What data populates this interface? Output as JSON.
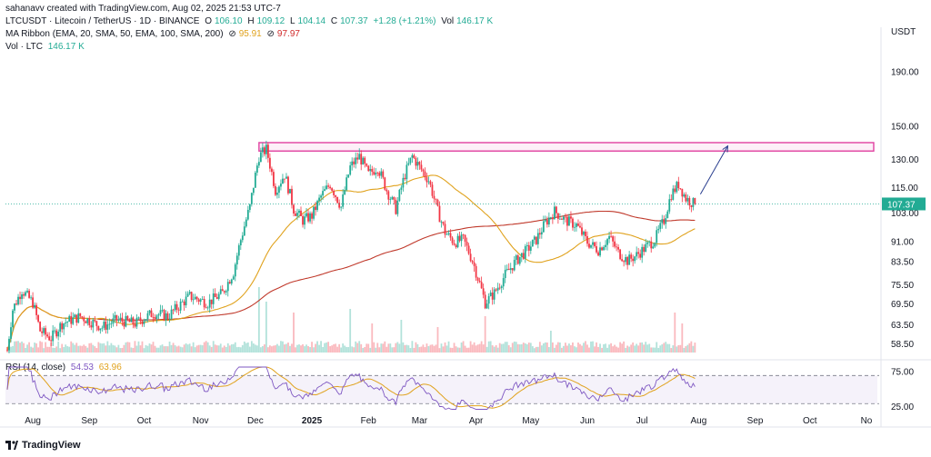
{
  "meta": {
    "credit": "sahanavv created with TradingView.com, Aug 02, 2025 21:53 UTC-7"
  },
  "legend": {
    "symbol_line": "LTCUSDT · Litecoin / TetherUS · 1D · BINANCE",
    "o_label": "O",
    "o_value": "106.10",
    "h_label": "H",
    "h_value": "109.12",
    "l_label": "L",
    "l_value": "104.14",
    "c_label": "C",
    "c_value": "107.37",
    "change": "+1.28 (+1.21%)",
    "vol_label": "Vol",
    "vol_value": "146.17 K",
    "ma_title": "MA Ribbon (EMA, 20, SMA, 50, EMA, 100, SMA, 200)",
    "ma_sep1": "⊘",
    "ma_val1": "95.91",
    "ma_sep2": "⊘",
    "ma_val2": "97.97",
    "vol_line_label": "Vol · LTC",
    "vol_line_value": "146.17 K",
    "rsi_title": "RSI (14, close)",
    "rsi_val1": "54.53",
    "rsi_val2": "63.96"
  },
  "footer": {
    "brand": "TradingView"
  },
  "colors": {
    "up": "#22ab94",
    "down": "#f23645",
    "ma_fast": "#e0a21d",
    "ma_slow": "#c0392b",
    "rsi": "#7e57c2",
    "rsi_ma": "#e0a21d",
    "resistance": "#e040a0",
    "arrow": "#2a3f8f",
    "price_label": "#22ab94"
  },
  "chart_data": {
    "type": "candlestick",
    "price_axis_unit": "USDT",
    "price_ticks": [
      "190.00",
      "150.00",
      "130.00",
      "115.00",
      "103.00",
      "91.00",
      "83.50",
      "75.50",
      "69.50",
      "63.50",
      "58.50"
    ],
    "price_tick_values": [
      190,
      150,
      130,
      115,
      103,
      91,
      83.5,
      75.5,
      69.5,
      63.5,
      58.5
    ],
    "current_price": "107.37",
    "current_price_value": 107.37,
    "x_labels": [
      "Aug",
      "Sep",
      "Oct",
      "Nov",
      "Dec",
      "2025",
      "Feb",
      "Mar",
      "Apr",
      "May",
      "Jun",
      "Jul",
      "Aug",
      "Sep",
      "Oct",
      "No"
    ],
    "x_label_day": [
      14,
      45,
      75,
      106,
      136,
      167,
      198,
      226,
      257,
      287,
      318,
      348,
      379,
      410,
      440,
      471
    ],
    "last_day": 377,
    "resistance_zone": [
      135,
      140
    ],
    "rsi_ticks": [
      "75.00",
      "25.00"
    ],
    "rsi_tick_values": [
      75,
      25
    ],
    "rsi_bands": [
      70,
      30
    ],
    "rsi_range": [
      20,
      82
    ],
    "closes": [
      {
        "d": 0,
        "c": 57
      },
      {
        "d": 3,
        "c": 68
      },
      {
        "d": 8,
        "c": 74
      },
      {
        "d": 14,
        "c": 70
      },
      {
        "d": 18,
        "c": 62
      },
      {
        "d": 24,
        "c": 60
      },
      {
        "d": 30,
        "c": 64
      },
      {
        "d": 40,
        "c": 66
      },
      {
        "d": 52,
        "c": 63
      },
      {
        "d": 60,
        "c": 65
      },
      {
        "d": 70,
        "c": 64
      },
      {
        "d": 80,
        "c": 67
      },
      {
        "d": 88,
        "c": 66
      },
      {
        "d": 100,
        "c": 72
      },
      {
        "d": 110,
        "c": 70
      },
      {
        "d": 118,
        "c": 73
      },
      {
        "d": 124,
        "c": 80
      },
      {
        "d": 128,
        "c": 92
      },
      {
        "d": 133,
        "c": 106
      },
      {
        "d": 138,
        "c": 132
      },
      {
        "d": 142,
        "c": 136
      },
      {
        "d": 147,
        "c": 114
      },
      {
        "d": 152,
        "c": 122
      },
      {
        "d": 157,
        "c": 105
      },
      {
        "d": 162,
        "c": 100
      },
      {
        "d": 167,
        "c": 102
      },
      {
        "d": 172,
        "c": 111
      },
      {
        "d": 177,
        "c": 117
      },
      {
        "d": 183,
        "c": 106
      },
      {
        "d": 188,
        "c": 126
      },
      {
        "d": 193,
        "c": 132
      },
      {
        "d": 198,
        "c": 122
      },
      {
        "d": 203,
        "c": 126
      },
      {
        "d": 208,
        "c": 114
      },
      {
        "d": 213,
        "c": 105
      },
      {
        "d": 218,
        "c": 122
      },
      {
        "d": 222,
        "c": 132
      },
      {
        "d": 226,
        "c": 126
      },
      {
        "d": 231,
        "c": 119
      },
      {
        "d": 236,
        "c": 104
      },
      {
        "d": 240,
        "c": 95
      },
      {
        "d": 245,
        "c": 91
      },
      {
        "d": 250,
        "c": 92
      },
      {
        "d": 255,
        "c": 84
      },
      {
        "d": 259,
        "c": 76
      },
      {
        "d": 262,
        "c": 70
      },
      {
        "d": 267,
        "c": 73
      },
      {
        "d": 273,
        "c": 79
      },
      {
        "d": 279,
        "c": 84
      },
      {
        "d": 285,
        "c": 88
      },
      {
        "d": 290,
        "c": 92
      },
      {
        "d": 295,
        "c": 99
      },
      {
        "d": 300,
        "c": 104
      },
      {
        "d": 306,
        "c": 100
      },
      {
        "d": 312,
        "c": 98
      },
      {
        "d": 318,
        "c": 91
      },
      {
        "d": 324,
        "c": 88
      },
      {
        "d": 330,
        "c": 93
      },
      {
        "d": 335,
        "c": 87
      },
      {
        "d": 340,
        "c": 84
      },
      {
        "d": 345,
        "c": 86
      },
      {
        "d": 350,
        "c": 89
      },
      {
        "d": 355,
        "c": 92
      },
      {
        "d": 360,
        "c": 100
      },
      {
        "d": 364,
        "c": 112
      },
      {
        "d": 368,
        "c": 117
      },
      {
        "d": 372,
        "c": 110
      },
      {
        "d": 377,
        "c": 107
      }
    ],
    "volume_spikes": [
      {
        "d": 138,
        "v": 0.9
      },
      {
        "d": 142,
        "v": 0.7
      },
      {
        "d": 157,
        "v": 0.55
      },
      {
        "d": 188,
        "v": 0.6
      },
      {
        "d": 200,
        "v": 0.4
      },
      {
        "d": 216,
        "v": 0.45
      },
      {
        "d": 236,
        "v": 0.35
      },
      {
        "d": 262,
        "v": 0.5
      },
      {
        "d": 298,
        "v": 0.3
      },
      {
        "d": 366,
        "v": 0.55
      },
      {
        "d": 370,
        "v": 0.4
      }
    ],
    "projection": {
      "from_day": 380,
      "from_price": 112,
      "to_day": 395,
      "to_price": 138
    }
  }
}
